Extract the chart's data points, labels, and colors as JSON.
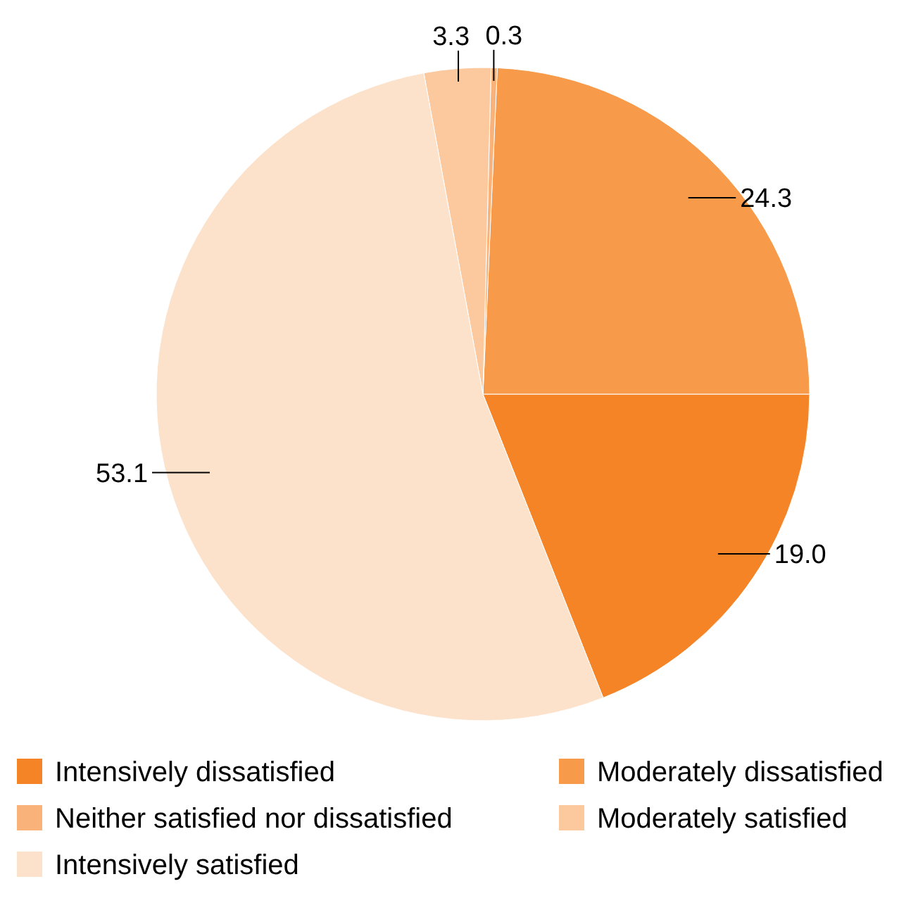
{
  "chart_data": {
    "type": "pie",
    "categories": [
      "Intensively dissatisfied",
      "Moderately dissatisfied",
      "Neither satisfied nor dissatisfied",
      "Moderately satisfied",
      "Intensively satisfied"
    ],
    "values": [
      19.0,
      24.3,
      0.3,
      3.3,
      53.1
    ],
    "colors": [
      "#f58426",
      "#f79a4a",
      "#f9b27a",
      "#fbc99d",
      "#fde2cb"
    ],
    "value_labels": [
      "19.0",
      "24.3",
      "0.3",
      "3.3",
      "53.1"
    ],
    "legend": "bottom"
  }
}
